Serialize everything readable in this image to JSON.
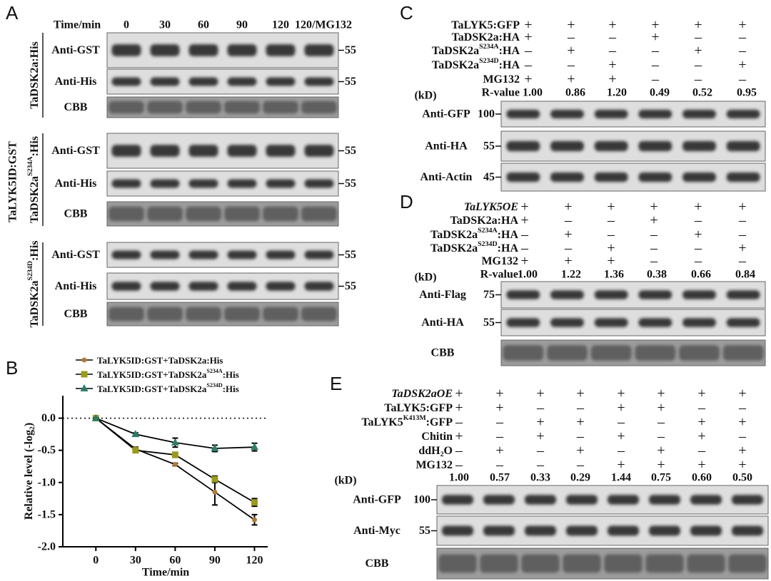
{
  "panel_labels": [
    "A",
    "B",
    "C",
    "D",
    "E"
  ],
  "panel_a": {
    "time_label": "Time/min",
    "times": [
      "0",
      "30",
      "60",
      "90",
      "120",
      "120/MG132"
    ],
    "side_label": "TaLYK5ID:GST",
    "groups": [
      {
        "label": [
          "TaDSK2a:His"
        ],
        "rows": [
          {
            "label": "Anti-GST",
            "marker": "55"
          },
          {
            "label": "Anti-His",
            "marker": "55"
          },
          {
            "label": "CBB"
          }
        ]
      },
      {
        "label": [
          "TaDSK2a",
          "S234A",
          ":His"
        ],
        "rows": [
          {
            "label": "Anti-GST",
            "marker": "55"
          },
          {
            "label": "Anti-His",
            "marker": "55"
          },
          {
            "label": "CBB"
          }
        ]
      },
      {
        "label": [
          "TaDSK2a",
          "S234D",
          ":His"
        ],
        "rows": [
          {
            "label": "Anti-GST",
            "marker": "55"
          },
          {
            "label": "Anti-His",
            "marker": "55"
          },
          {
            "label": "CBB"
          }
        ]
      }
    ]
  },
  "chart_data": {
    "type": "line",
    "xlabel": "Time/min",
    "ylabel": [
      "Relative level (-log",
      "2",
      ")"
    ],
    "ylabel_script": "sub",
    "x": [
      0,
      30,
      60,
      90,
      120
    ],
    "xlim": [
      -25,
      130
    ],
    "xticks": [
      0,
      30,
      60,
      90,
      120
    ],
    "ylim": [
      -2.0,
      0.35
    ],
    "yticks": [
      {
        "value": 0,
        "label": "0.0"
      },
      -0.5,
      {
        "value": -1,
        "label": "-1.0"
      },
      -1.5,
      {
        "value": -2,
        "label": "-2.0"
      }
    ],
    "reference_line": 0,
    "series": [
      {
        "name": [
          "TaLYK5ID:GST+TaDSK2a:His"
        ],
        "color": "#b07a3a",
        "marker": "circle",
        "values": [
          0,
          -0.48,
          -0.72,
          -1.15,
          -1.58
        ],
        "errors": [
          0,
          0.03,
          0.02,
          0.2,
          0.08
        ]
      },
      {
        "name": [
          "TaLYK5ID:GST+TaDSK2a",
          "S234A",
          ":His"
        ],
        "color": "#9a9a1e",
        "marker": "square",
        "values": [
          0,
          -0.5,
          -0.57,
          -0.95,
          -1.31
        ],
        "errors": [
          0,
          0.03,
          0.04,
          0.05,
          0.06
        ]
      },
      {
        "name": [
          "TaLYK5ID:GST+TaDSK2a",
          "S234D",
          ":His"
        ],
        "color": "#2e7d6a",
        "marker": "triangle",
        "values": [
          0,
          -0.25,
          -0.38,
          -0.47,
          -0.45
        ],
        "errors": [
          0,
          0.02,
          0.07,
          0.05,
          0.06
        ]
      }
    ]
  },
  "panel_c": {
    "conditions": [
      {
        "label": [
          "TaLYK5:GFP"
        ],
        "signs": [
          "+",
          "+",
          "+",
          "+",
          "+",
          "+"
        ]
      },
      {
        "label": [
          "TaDSK2a:HA"
        ],
        "signs": [
          "+",
          "–",
          "–",
          "+",
          "–",
          "–"
        ]
      },
      {
        "label": [
          "TaDSK2a",
          "S234A",
          ":HA"
        ],
        "signs": [
          "–",
          "+",
          "–",
          "–",
          "+",
          "–"
        ]
      },
      {
        "label": [
          "TaDSK2a",
          "S234D",
          ":HA"
        ],
        "signs": [
          "–",
          "–",
          "+",
          "–",
          "–",
          "+"
        ]
      },
      {
        "label": [
          "MG132"
        ],
        "signs": [
          "+",
          "+",
          "+",
          "–",
          "–",
          "–"
        ]
      }
    ],
    "kd_label": "(kD)",
    "value_label": "R-value",
    "values": [
      "1.00",
      "0.86",
      "1.20",
      "0.49",
      "0.52",
      "0.95"
    ],
    "blots": [
      {
        "label": "Anti-GFP",
        "marker": "100"
      },
      {
        "label": "Anti-HA",
        "marker": "55"
      },
      {
        "label": "Anti-Actin",
        "marker": "45"
      }
    ]
  },
  "panel_d": {
    "conditions": [
      {
        "label": [
          "TaLYK5OE"
        ],
        "italic": true,
        "signs": [
          "+",
          "+",
          "+",
          "+",
          "+",
          "+"
        ]
      },
      {
        "label": [
          "TaDSK2a:HA"
        ],
        "signs": [
          "+",
          "–",
          "–",
          "+",
          "–",
          "–"
        ]
      },
      {
        "label": [
          "TaDSK2a",
          "S234A",
          ":HA"
        ],
        "signs": [
          "–",
          "+",
          "–",
          "–",
          "+",
          "–"
        ]
      },
      {
        "label": [
          "TaDSK2a",
          "S234D",
          ":HA"
        ],
        "signs": [
          "–",
          "–",
          "+",
          "–",
          "–",
          "+"
        ]
      },
      {
        "label": [
          "MG132"
        ],
        "signs": [
          "+",
          "+",
          "+",
          "–",
          "–",
          "–"
        ]
      }
    ],
    "kd_label": "(kD)",
    "value_label": "R-value",
    "values": [
      "1.00",
      "1.22",
      "1.36",
      "0.38",
      "0.66",
      "0.84"
    ],
    "blots": [
      {
        "label": "Anti-Flag",
        "marker": "75"
      },
      {
        "label": "Anti-HA",
        "marker": "55"
      },
      {
        "label": "CBB"
      }
    ]
  },
  "panel_e": {
    "conditions": [
      {
        "label": [
          "TaDSK2aOE"
        ],
        "italic": true,
        "signs": [
          "+",
          "+",
          "+",
          "+",
          "+",
          "+",
          "+",
          "+"
        ]
      },
      {
        "label": [
          "TaLYK5:GFP"
        ],
        "signs": [
          "+",
          "+",
          "–",
          "–",
          "+",
          "+",
          "–",
          "–"
        ]
      },
      {
        "label": [
          "TaLYK5",
          "K413M",
          ":GFP"
        ],
        "signs": [
          "–",
          "–",
          "+",
          "+",
          "–",
          "–",
          "+",
          "+"
        ]
      },
      {
        "label": [
          "Chitin"
        ],
        "signs": [
          "+",
          "–",
          "+",
          "–",
          "+",
          "–",
          "+",
          "–"
        ]
      },
      {
        "label": [
          "ddH",
          "2",
          "O"
        ],
        "script": "sub",
        "signs": [
          "–",
          "+",
          "–",
          "+",
          "–",
          "+",
          "–",
          "+"
        ]
      },
      {
        "label": [
          "MG132"
        ],
        "signs": [
          "–",
          "–",
          "–",
          "–",
          "+",
          "+",
          "+",
          "+"
        ]
      }
    ],
    "kd_label": "(kD)",
    "values": [
      "1.00",
      "0.57",
      "0.33",
      "0.29",
      "1.44",
      "0.75",
      "0.60",
      "0.50"
    ],
    "blots": [
      {
        "label": "Anti-GFP",
        "marker": "100"
      },
      {
        "label": "Anti-Myc",
        "marker": "55"
      },
      {
        "label": "CBB"
      }
    ]
  }
}
